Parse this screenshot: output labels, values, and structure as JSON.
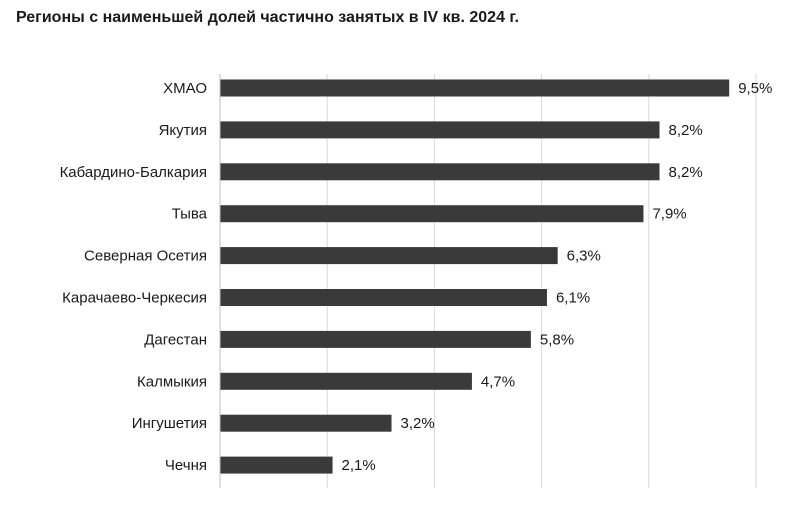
{
  "chart_data": {
    "type": "bar",
    "orientation": "horizontal",
    "title": "Регионы с наименьшей долей частично занятых в IV кв. 2024 г.",
    "categories": [
      "ХМАО",
      "Якутия",
      "Кабардино-Балкария",
      "Тыва",
      "Северная Осетия",
      "Карачаево-Черкесия",
      "Дагестан",
      "Калмыкия",
      "Ингушетия",
      "Чечня"
    ],
    "values": [
      9.5,
      8.2,
      8.2,
      7.9,
      6.3,
      6.1,
      5.8,
      4.7,
      3.2,
      2.1
    ],
    "value_labels": [
      "9,5%",
      "8,2%",
      "8,2%",
      "7,9%",
      "6,3%",
      "6,1%",
      "5,8%",
      "4,7%",
      "3,2%",
      "2,1%"
    ],
    "xlim": [
      0,
      10
    ],
    "grid": true,
    "bar_color": "#3a3a3a"
  }
}
